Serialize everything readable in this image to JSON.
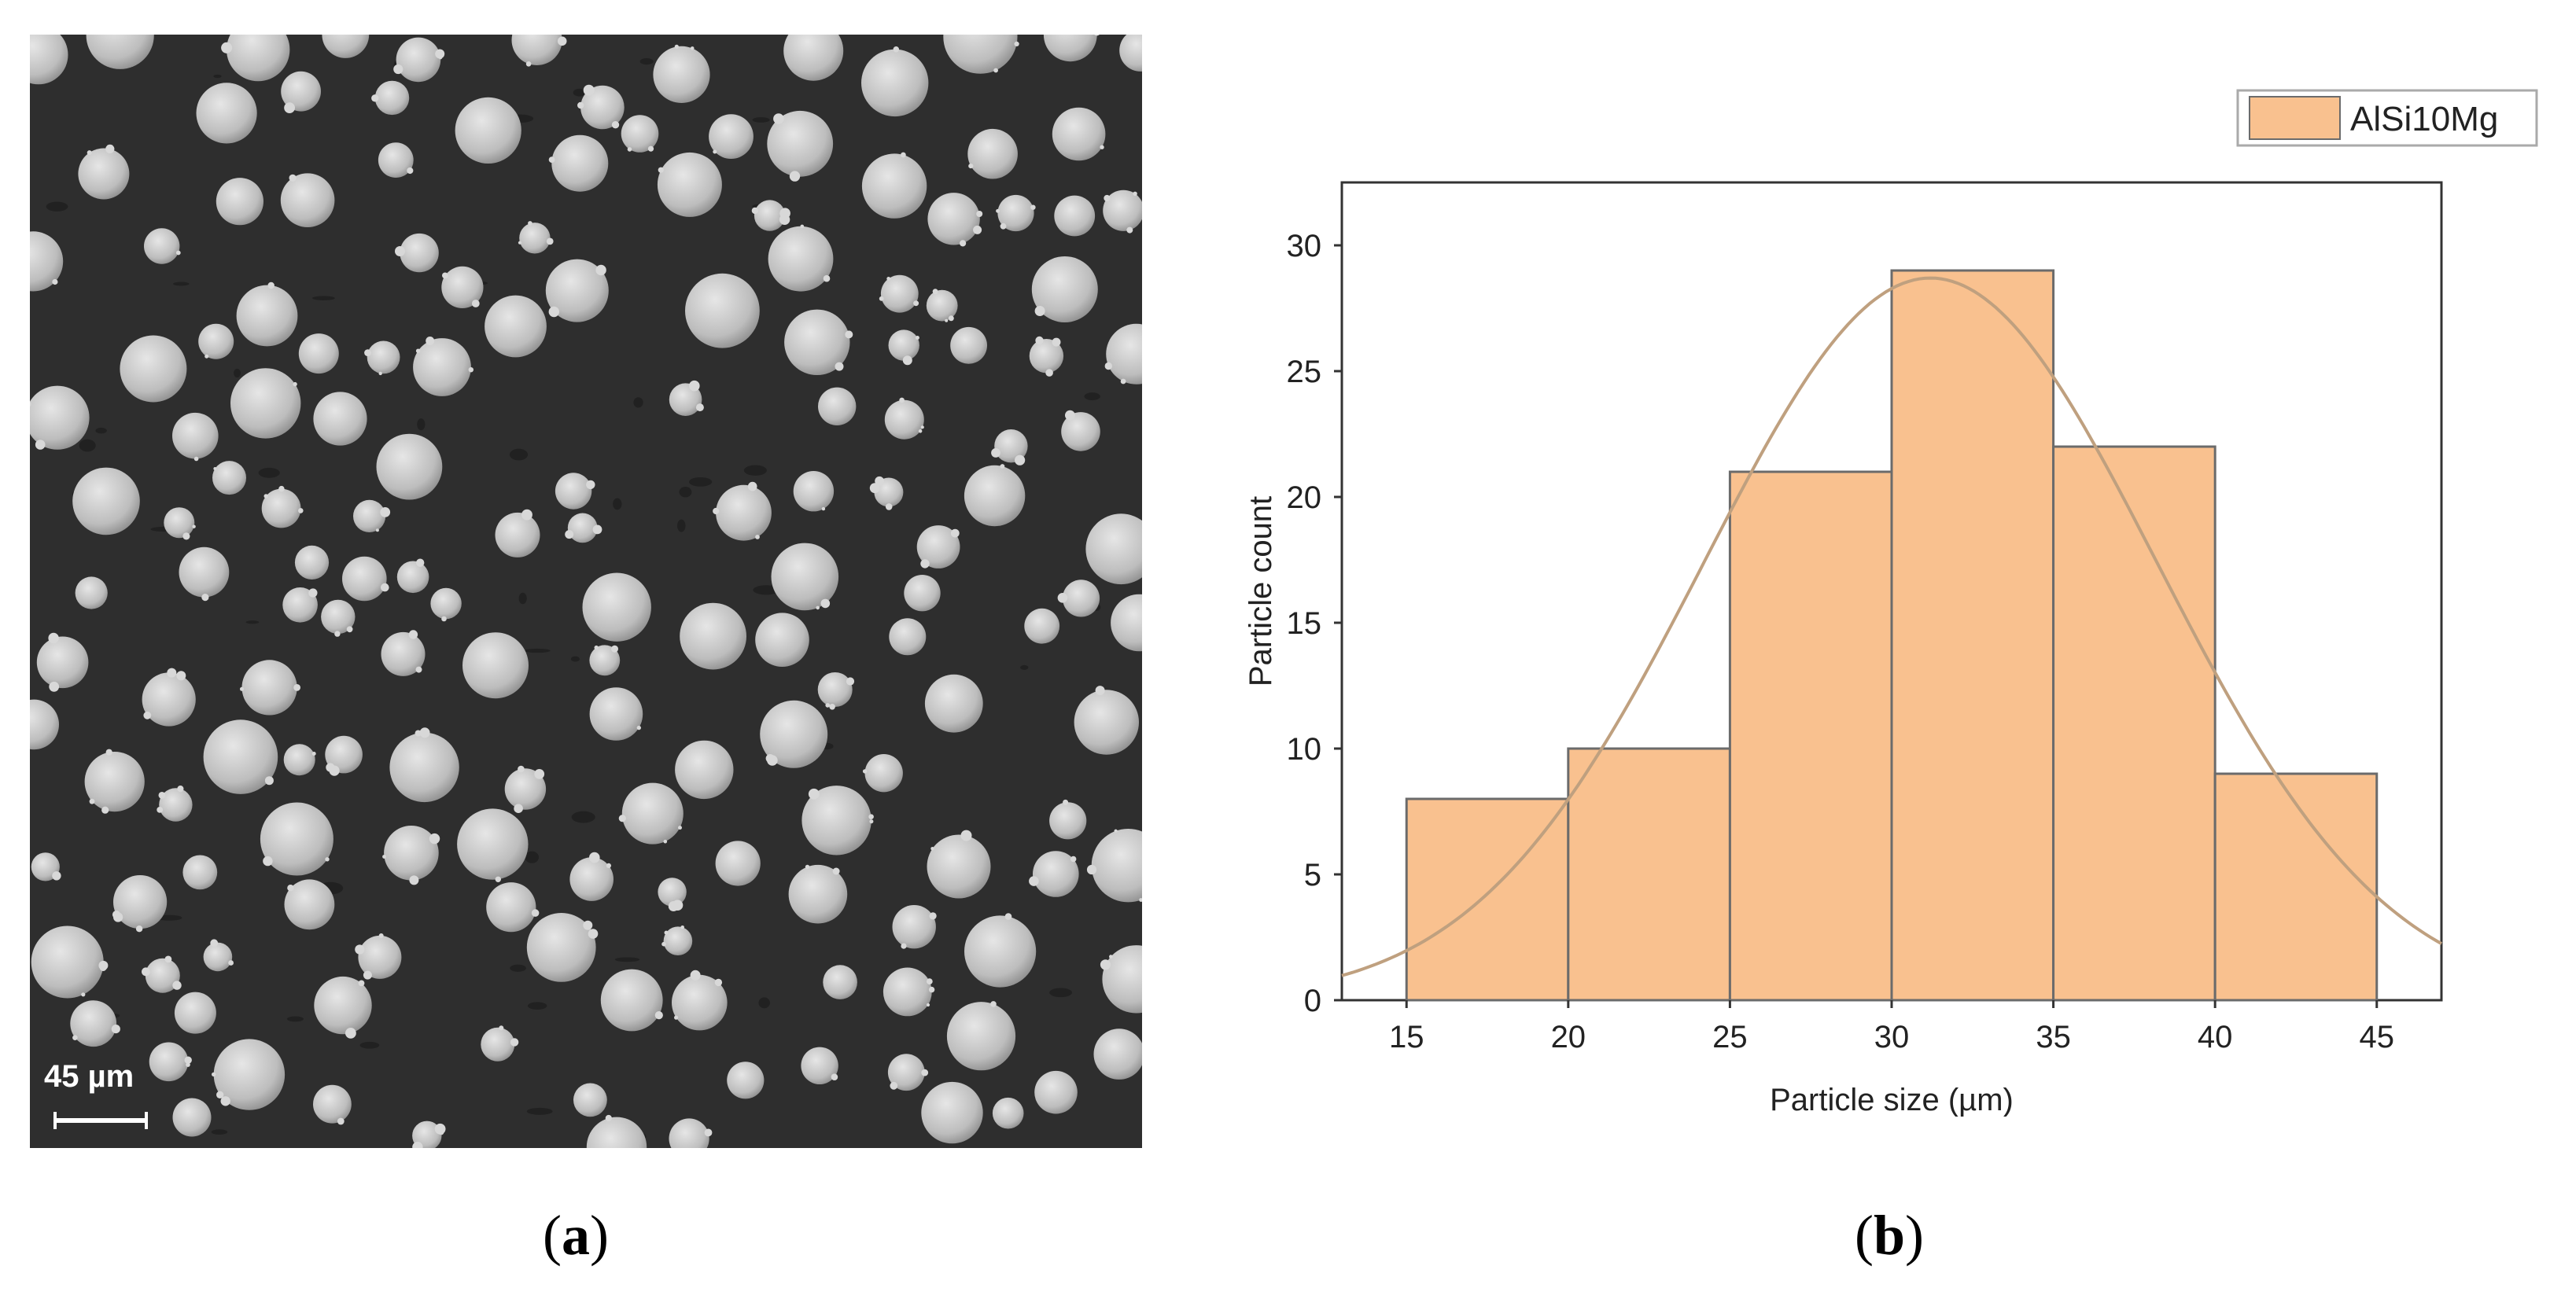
{
  "panel_a": {
    "scale_bar_label": "45 µm",
    "caption_letter": "a"
  },
  "panel_b": {
    "caption_letter": "b"
  },
  "colors": {
    "bar_fill": "#f9c18f",
    "bar_stroke": "#6b6b6b",
    "curve": "#bfa07f",
    "sem_background": "#2e2e2e",
    "particle": "#bdbdbd"
  },
  "chart_data": {
    "type": "bar",
    "bins": [
      [
        15,
        20
      ],
      [
        20,
        25
      ],
      [
        25,
        30
      ],
      [
        30,
        35
      ],
      [
        35,
        40
      ],
      [
        40,
        45
      ]
    ],
    "values": [
      8,
      10,
      21,
      29,
      22,
      9
    ],
    "series": [
      {
        "name": "AlSi10Mg",
        "values": [
          8,
          10,
          21,
          29,
          22,
          9
        ]
      }
    ],
    "fit_curve": {
      "type": "normal",
      "mean": 31.2,
      "sd": 7.0,
      "peak": 28.7
    },
    "xlabel": "Particle size (µm)",
    "ylabel": "Particle count",
    "xlim": [
      13,
      47
    ],
    "ylim": [
      0,
      32.5
    ],
    "xticks": [
      15,
      20,
      25,
      30,
      35,
      40,
      45
    ],
    "yticks": [
      0,
      5,
      10,
      15,
      20,
      25,
      30
    ],
    "legend_position": "top-right",
    "grid": false
  }
}
